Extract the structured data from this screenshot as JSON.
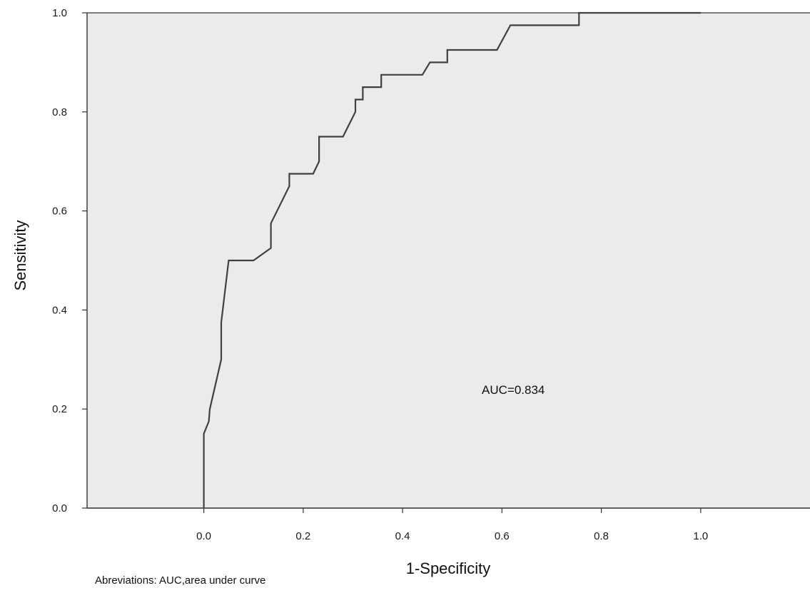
{
  "chart_data": {
    "type": "line",
    "title": "",
    "xlabel": "1-Specificity",
    "ylabel": "Sensitivity",
    "xlim": [
      -0.235,
      1.22
    ],
    "ylim": [
      0,
      1.0
    ],
    "x_ticks": [
      "0.0",
      "0.2",
      "0.4",
      "0.6",
      "0.8",
      "1.0"
    ],
    "y_ticks": [
      "0.0",
      "0.2",
      "0.4",
      "0.6",
      "0.8",
      "1.0"
    ],
    "grid": false,
    "plot_background": "#ebebeb",
    "line_color": "#404040",
    "annotation": "AUC=0.834",
    "series": [
      {
        "points": [
          [
            0.0,
            0.0
          ],
          [
            0.0,
            0.15
          ],
          [
            0.01,
            0.175
          ],
          [
            0.012,
            0.2
          ],
          [
            0.035,
            0.3
          ],
          [
            0.035,
            0.375
          ],
          [
            0.05,
            0.5
          ],
          [
            0.1,
            0.5
          ],
          [
            0.135,
            0.525
          ],
          [
            0.135,
            0.575
          ],
          [
            0.172,
            0.65
          ],
          [
            0.172,
            0.675
          ],
          [
            0.22,
            0.675
          ],
          [
            0.232,
            0.7
          ],
          [
            0.232,
            0.75
          ],
          [
            0.28,
            0.75
          ],
          [
            0.305,
            0.8
          ],
          [
            0.305,
            0.825
          ],
          [
            0.32,
            0.825
          ],
          [
            0.32,
            0.85
          ],
          [
            0.357,
            0.85
          ],
          [
            0.357,
            0.875
          ],
          [
            0.44,
            0.875
          ],
          [
            0.455,
            0.9
          ],
          [
            0.49,
            0.9
          ],
          [
            0.49,
            0.925
          ],
          [
            0.59,
            0.925
          ],
          [
            0.617,
            0.975
          ],
          [
            0.755,
            0.975
          ],
          [
            0.755,
            1.0
          ],
          [
            1.0,
            1.0
          ]
        ]
      }
    ]
  },
  "footnote": "Abreviations: AUC,area under curve"
}
